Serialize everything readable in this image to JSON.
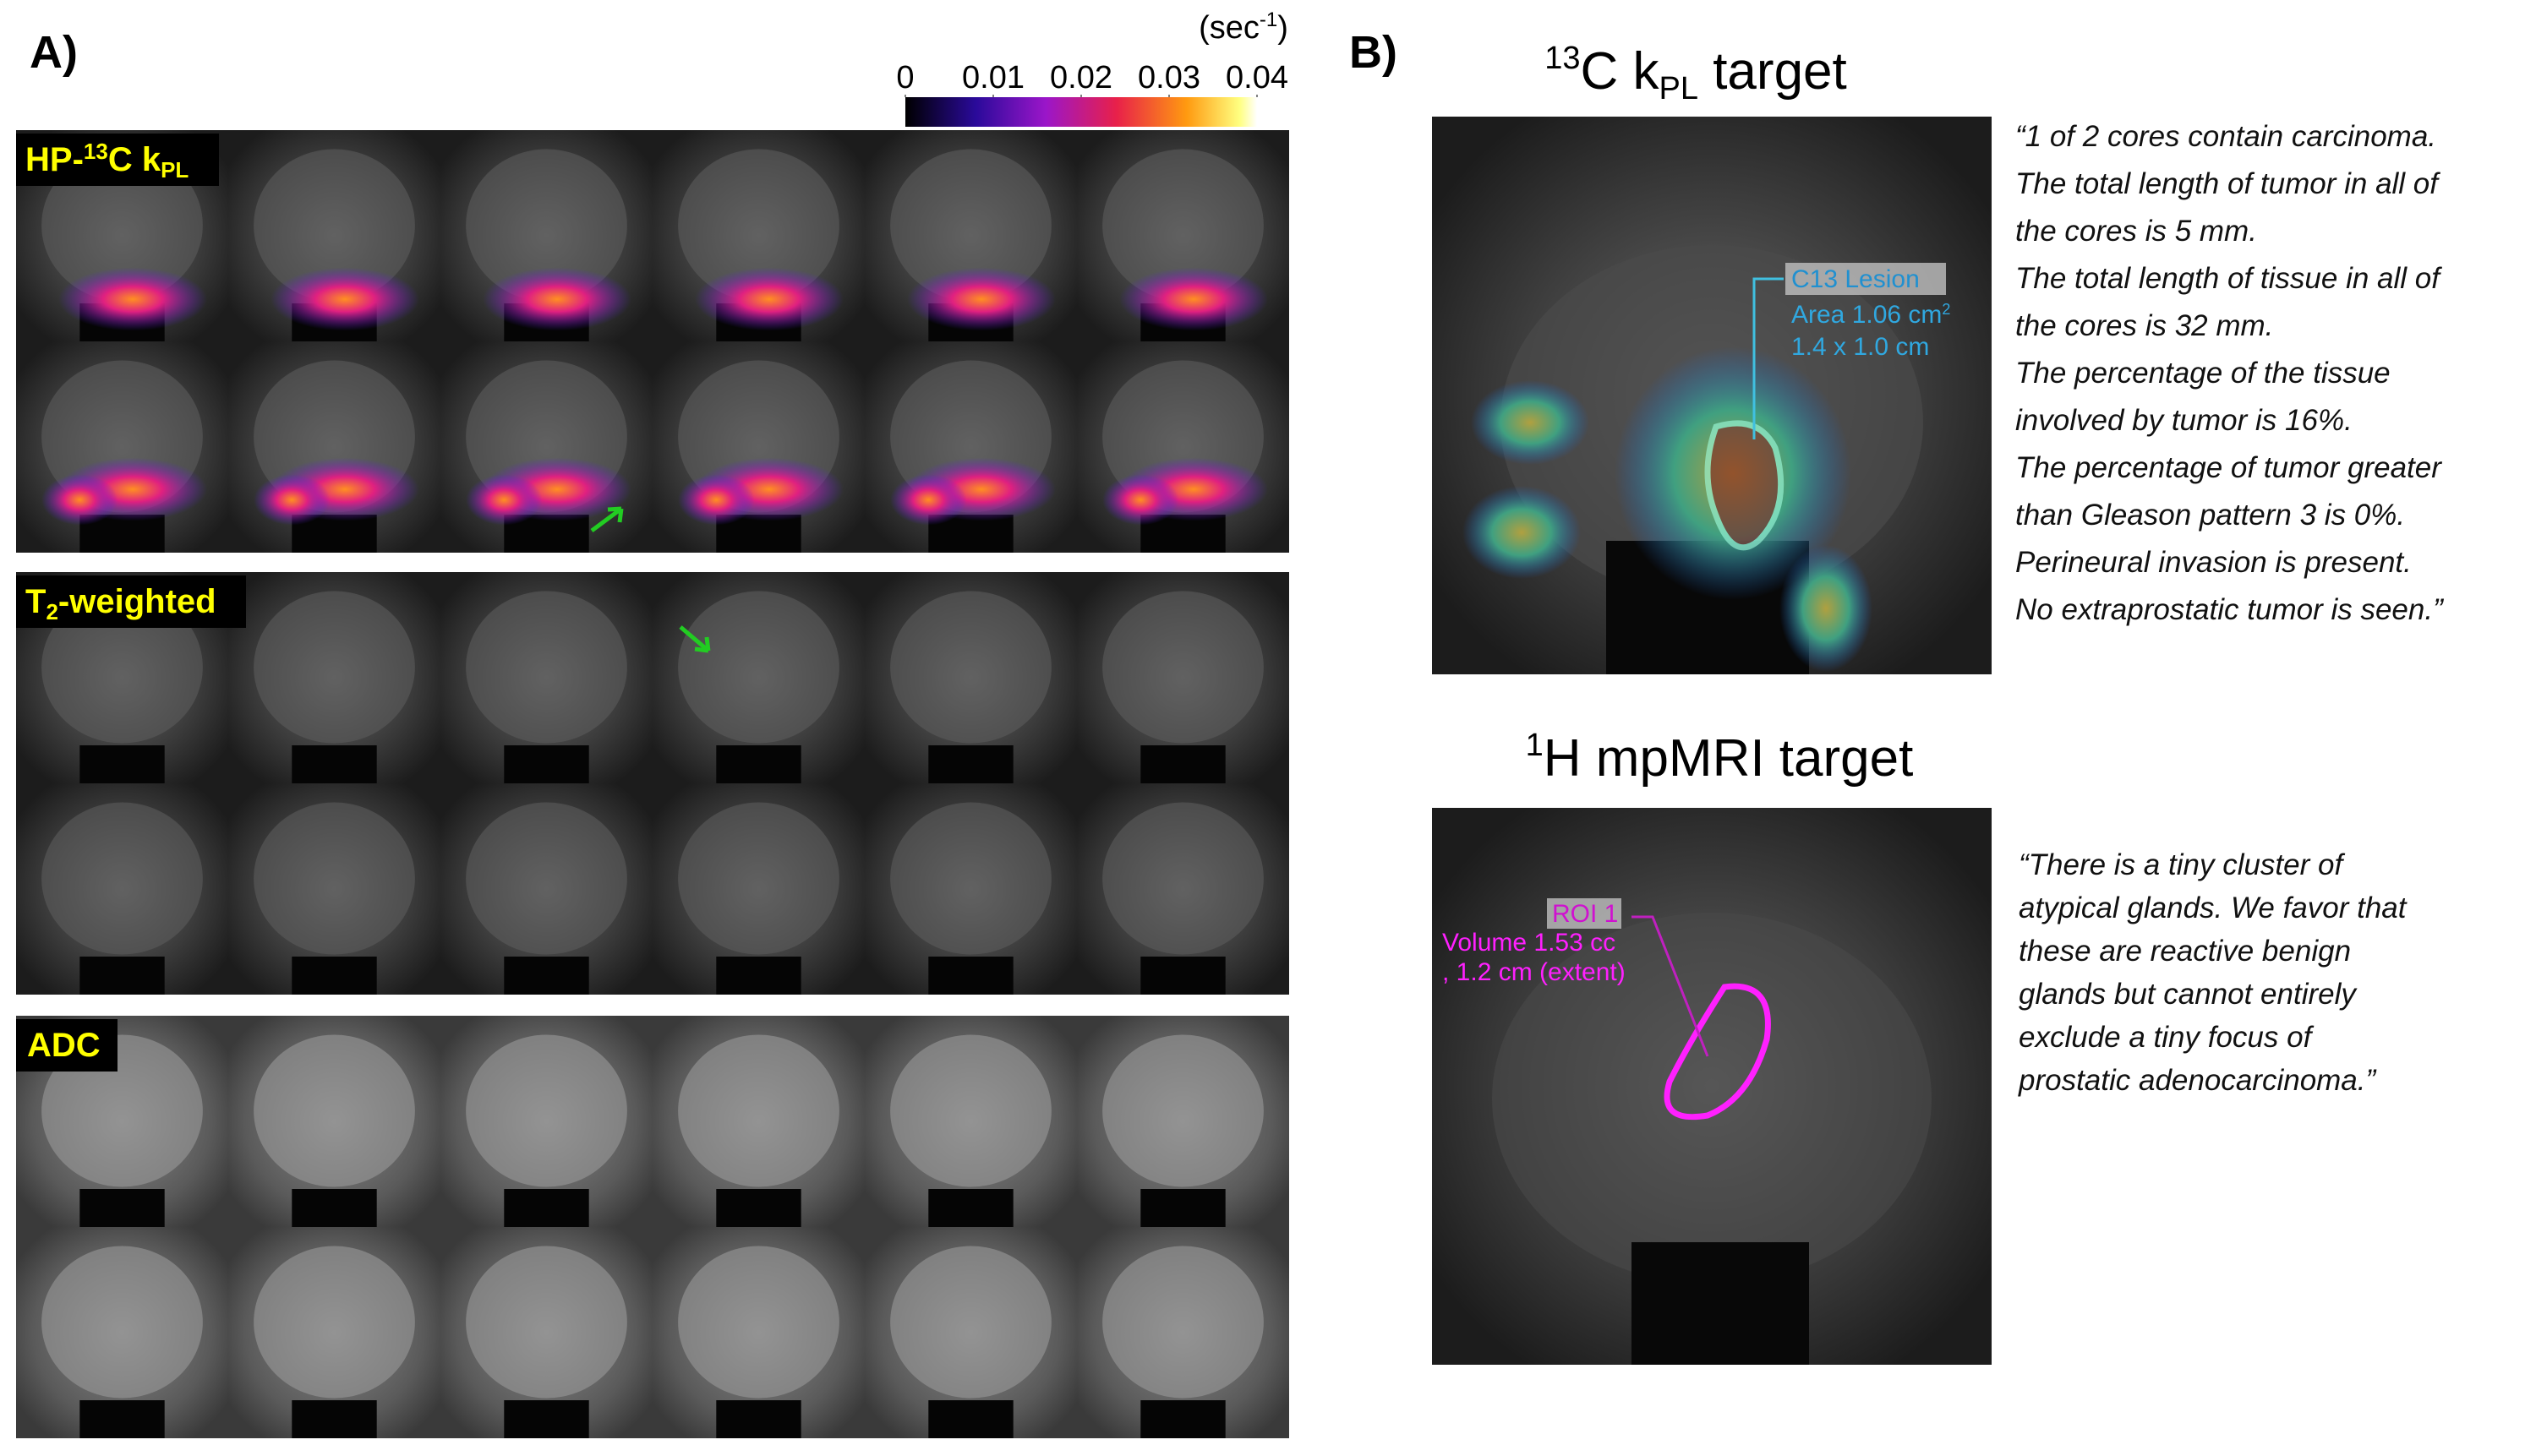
{
  "panel_a": {
    "label": "A)",
    "colorbar": {
      "unit": {
        "open": "(sec",
        "sup": "-1",
        "close": ")"
      },
      "range": [
        0,
        0.04
      ],
      "ticks": [
        0,
        0.01,
        0.02,
        0.03,
        0.04
      ]
    },
    "kpl_label": {
      "pre": "HP-",
      "sup": "13",
      "mid": "C k",
      "sub": "PL"
    },
    "t2_label": {
      "pre": "T",
      "sub": "2",
      "post": "-weighted"
    },
    "adc_label": "ADC"
  },
  "panel_b": {
    "label": "B)",
    "c13_title": {
      "sup": "13",
      "mid": "C k",
      "sub": "PL",
      "post": " target"
    },
    "c13_overlay": {
      "name": "C13 Lesion",
      "area_pre": "Area 1.06 cm",
      "area_sup": "2",
      "size": "1.4 x 1.0 cm"
    },
    "c13_quote": [
      "“1 of 2 cores contain carcinoma.",
      "The total length of tumor in all of",
      "the cores is 5 mm.",
      "The total length of tissue in all of",
      "the cores is 32 mm.",
      "The percentage of the tissue",
      "involved by tumor is 16%.",
      "The percentage of tumor greater",
      "than Gleason pattern 3 is 0%.",
      "Perineural invasion is present.",
      "No extraprostatic tumor is seen.”"
    ],
    "h1_title": {
      "sup": "1",
      "post": "H mpMRI target"
    },
    "h1_overlay": {
      "name": "ROI 1",
      "volume": "Volume 1.53 cc",
      "extent": ", 1.2 cm (extent)"
    },
    "h1_quote": [
      "“There is a tiny cluster of",
      "atypical glands. We favor that",
      "these are reactive benign",
      "glands but cannot entirely",
      "exclude a tiny focus of",
      "prostatic adenocarcinoma.”"
    ]
  }
}
